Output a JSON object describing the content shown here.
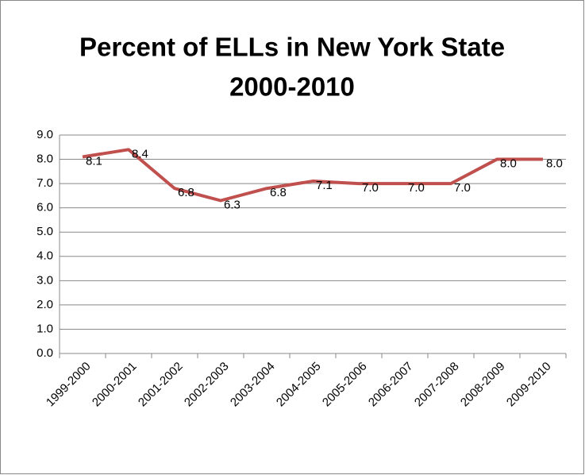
{
  "chart_data": {
    "type": "line",
    "title": [
      "Percent of ELLs in New York State",
      "2000-2010"
    ],
    "categories": [
      "1999-2000",
      "2000-2001",
      "2001-2002",
      "2002-2003",
      "2003-2004",
      "2004-2005",
      "2005-2006",
      "2006-2007",
      "2007-2008",
      "2008-2009",
      "2009-2010"
    ],
    "series": [
      {
        "name": "Percent of ELLs",
        "color": "#c0504d",
        "values": [
          8.1,
          8.4,
          6.8,
          6.3,
          6.8,
          7.1,
          7.0,
          7.0,
          7.0,
          8.0,
          8.0
        ],
        "value_labels": [
          "8.1",
          "8.4",
          "6.8",
          "6.3",
          "6.8",
          "7.1",
          "7.0",
          "7.0",
          "7.0",
          "8.0",
          "8.0"
        ]
      }
    ],
    "ylim": [
      0,
      9
    ],
    "yticks": [
      {
        "value": 0,
        "label": "0.0"
      },
      {
        "value": 1,
        "label": "1.0"
      },
      {
        "value": 2,
        "label": "2.0"
      },
      {
        "value": 3,
        "label": "3.0"
      },
      {
        "value": 4,
        "label": "4.0"
      },
      {
        "value": 5,
        "label": "5.0"
      },
      {
        "value": 6,
        "label": "6.0"
      },
      {
        "value": 7,
        "label": "7.0"
      },
      {
        "value": 8,
        "label": "8.0"
      },
      {
        "value": 9,
        "label": "9.0"
      }
    ],
    "grid": true
  }
}
